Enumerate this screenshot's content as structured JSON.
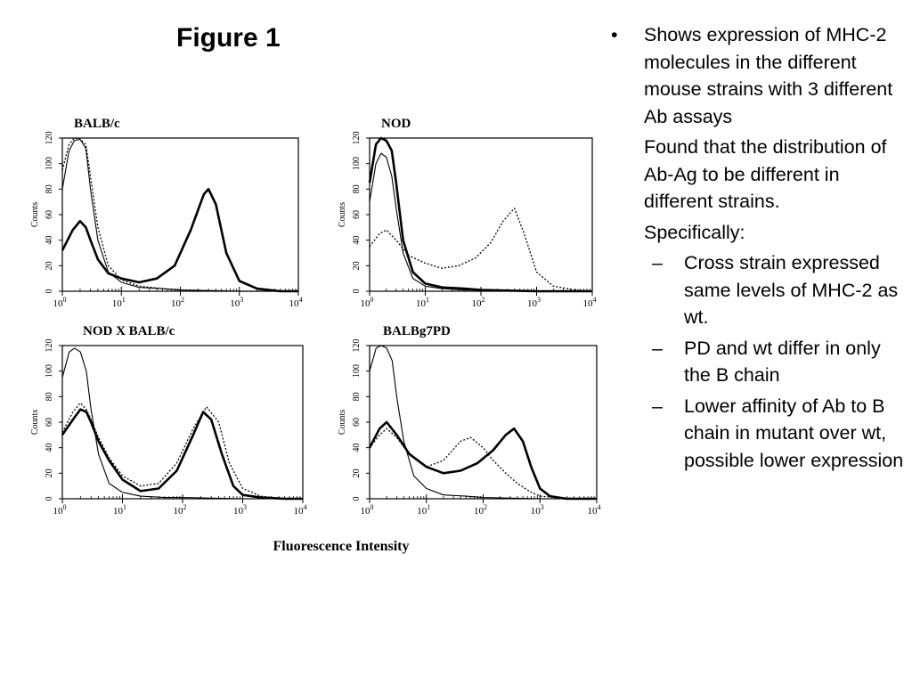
{
  "slide": {
    "title": "Figure 1",
    "bullets": [
      "Shows expression of MHC-2 molecules in the different mouse strains with 3 different Ab assays"
    ],
    "paragraphs": [
      "Found that the distribution of Ab-Ag to be different in different strains.",
      "Specifically:"
    ],
    "sub_bullets": [
      "Cross strain expressed same levels of MHC-2 as wt.",
      "PD and wt differ in only the B chain",
      "Lower affinity of Ab to B chain in mutant over wt, possible lower expression"
    ],
    "bullet_glyph": "•",
    "dash_glyph": "–"
  },
  "figure_xlabel": "Fluorescence Intensity",
  "chart_data": [
    {
      "type": "line",
      "title": "BALB/c",
      "ylabel": "Counts",
      "xscale": "log",
      "xlim": [
        1,
        10000
      ],
      "ylim": [
        0,
        120
      ],
      "yticks": [
        0,
        20,
        40,
        60,
        80,
        100,
        120
      ],
      "xticks": [
        "10^0",
        "10^1",
        "10^2",
        "10^3",
        "10^4"
      ],
      "series": [
        {
          "style": "bold",
          "x": [
            1,
            1.5,
            2,
            2.5,
            3,
            4,
            6,
            10,
            20,
            40,
            80,
            150,
            250,
            300,
            400,
            600,
            1000,
            2000,
            5000,
            10000
          ],
          "y": [
            32,
            48,
            55,
            50,
            40,
            25,
            14,
            10,
            7,
            10,
            20,
            48,
            76,
            80,
            68,
            30,
            8,
            2,
            0,
            0
          ]
        },
        {
          "style": "thin",
          "x": [
            1,
            1.3,
            1.6,
            2,
            2.5,
            3,
            4,
            6,
            10,
            20,
            50,
            100,
            1000,
            10000
          ],
          "y": [
            80,
            110,
            118,
            119,
            112,
            80,
            40,
            15,
            7,
            3,
            2,
            1,
            0,
            0
          ]
        },
        {
          "style": "dotted",
          "x": [
            1,
            1.3,
            1.6,
            2,
            2.5,
            3,
            4,
            6,
            10,
            20,
            50,
            100,
            1000,
            10000
          ],
          "y": [
            95,
            115,
            120,
            119,
            115,
            90,
            50,
            20,
            9,
            4,
            2,
            1,
            0,
            0
          ]
        }
      ]
    },
    {
      "type": "line",
      "title": "NOD",
      "ylabel": "Counts",
      "xscale": "log",
      "xlim": [
        1,
        10000
      ],
      "ylim": [
        0,
        120
      ],
      "yticks": [
        0,
        20,
        40,
        60,
        80,
        100,
        120
      ],
      "xticks": [
        "10^0",
        "10^1",
        "10^2",
        "10^3",
        "10^4"
      ],
      "series": [
        {
          "style": "bold",
          "x": [
            1,
            1.3,
            1.6,
            2,
            2.5,
            3,
            4,
            6,
            10,
            20,
            50,
            100,
            1000,
            10000
          ],
          "y": [
            85,
            115,
            120,
            118,
            110,
            85,
            40,
            15,
            6,
            3,
            2,
            1,
            0,
            0
          ]
        },
        {
          "style": "thin",
          "x": [
            1,
            1.3,
            1.6,
            2,
            2.5,
            3,
            4,
            6,
            10,
            20,
            50,
            100,
            1000,
            10000
          ],
          "y": [
            70,
            100,
            108,
            105,
            90,
            65,
            30,
            10,
            4,
            2,
            1,
            1,
            0,
            0
          ]
        },
        {
          "style": "dotted",
          "x": [
            1,
            1.5,
            2,
            3,
            5,
            10,
            20,
            40,
            80,
            150,
            250,
            400,
            600,
            1000,
            2000,
            5000,
            10000
          ],
          "y": [
            35,
            45,
            48,
            40,
            28,
            22,
            18,
            20,
            26,
            38,
            55,
            65,
            45,
            15,
            4,
            1,
            0
          ]
        }
      ]
    },
    {
      "type": "line",
      "title": "NOD X BALB/c",
      "ylabel": "Counts",
      "xscale": "log",
      "xlim": [
        1,
        10000
      ],
      "ylim": [
        0,
        120
      ],
      "yticks": [
        0,
        20,
        40,
        60,
        80,
        100,
        120
      ],
      "xticks": [
        "10^0",
        "10^1",
        "10^2",
        "10^3",
        "10^4"
      ],
      "series": [
        {
          "style": "bold",
          "x": [
            1,
            1.5,
            2,
            2.5,
            3,
            4,
            6,
            10,
            20,
            40,
            80,
            150,
            220,
            300,
            450,
            700,
            1000,
            2000,
            5000,
            10000
          ],
          "y": [
            50,
            62,
            70,
            68,
            60,
            45,
            30,
            15,
            6,
            8,
            22,
            50,
            68,
            62,
            35,
            10,
            3,
            1,
            0,
            0
          ]
        },
        {
          "style": "thin",
          "x": [
            1,
            1.3,
            1.6,
            2,
            2.5,
            3,
            4,
            6,
            10,
            20,
            50,
            100,
            1000,
            10000
          ],
          "y": [
            95,
            115,
            118,
            115,
            100,
            70,
            35,
            12,
            5,
            2,
            1,
            1,
            0,
            0
          ]
        },
        {
          "style": "dotted",
          "x": [
            1,
            1.5,
            2,
            2.5,
            3,
            4,
            6,
            10,
            20,
            40,
            80,
            150,
            250,
            400,
            600,
            1000,
            2000,
            5000,
            10000
          ],
          "y": [
            52,
            68,
            75,
            70,
            62,
            48,
            32,
            18,
            10,
            12,
            28,
            55,
            72,
            60,
            28,
            8,
            2,
            0,
            0
          ]
        }
      ]
    },
    {
      "type": "line",
      "title": "BALBg7PD",
      "ylabel": "Counts",
      "xscale": "log",
      "xlim": [
        1,
        10000
      ],
      "ylim": [
        0,
        120
      ],
      "yticks": [
        0,
        20,
        40,
        60,
        80,
        100,
        120
      ],
      "xticks": [
        "10^0",
        "10^1",
        "10^2",
        "10^3",
        "10^4"
      ],
      "series": [
        {
          "style": "bold",
          "x": [
            1,
            1.5,
            2,
            3,
            5,
            10,
            20,
            40,
            80,
            150,
            250,
            350,
            500,
            700,
            1000,
            1500,
            3000,
            10000
          ],
          "y": [
            40,
            55,
            60,
            50,
            35,
            25,
            20,
            22,
            28,
            38,
            50,
            55,
            45,
            25,
            8,
            2,
            0,
            0
          ]
        },
        {
          "style": "thin",
          "x": [
            1,
            1.3,
            1.6,
            2,
            2.5,
            3,
            4,
            6,
            10,
            20,
            50,
            100,
            1000,
            10000
          ],
          "y": [
            100,
            118,
            120,
            118,
            108,
            80,
            45,
            18,
            8,
            3,
            2,
            1,
            0,
            0
          ]
        },
        {
          "style": "dotted",
          "x": [
            1,
            1.5,
            2,
            3,
            5,
            10,
            20,
            40,
            60,
            100,
            150,
            250,
            400,
            700,
            1000,
            2000,
            5000,
            10000
          ],
          "y": [
            40,
            50,
            55,
            48,
            35,
            25,
            30,
            45,
            48,
            40,
            30,
            20,
            12,
            5,
            2,
            1,
            0,
            0
          ]
        }
      ]
    }
  ]
}
